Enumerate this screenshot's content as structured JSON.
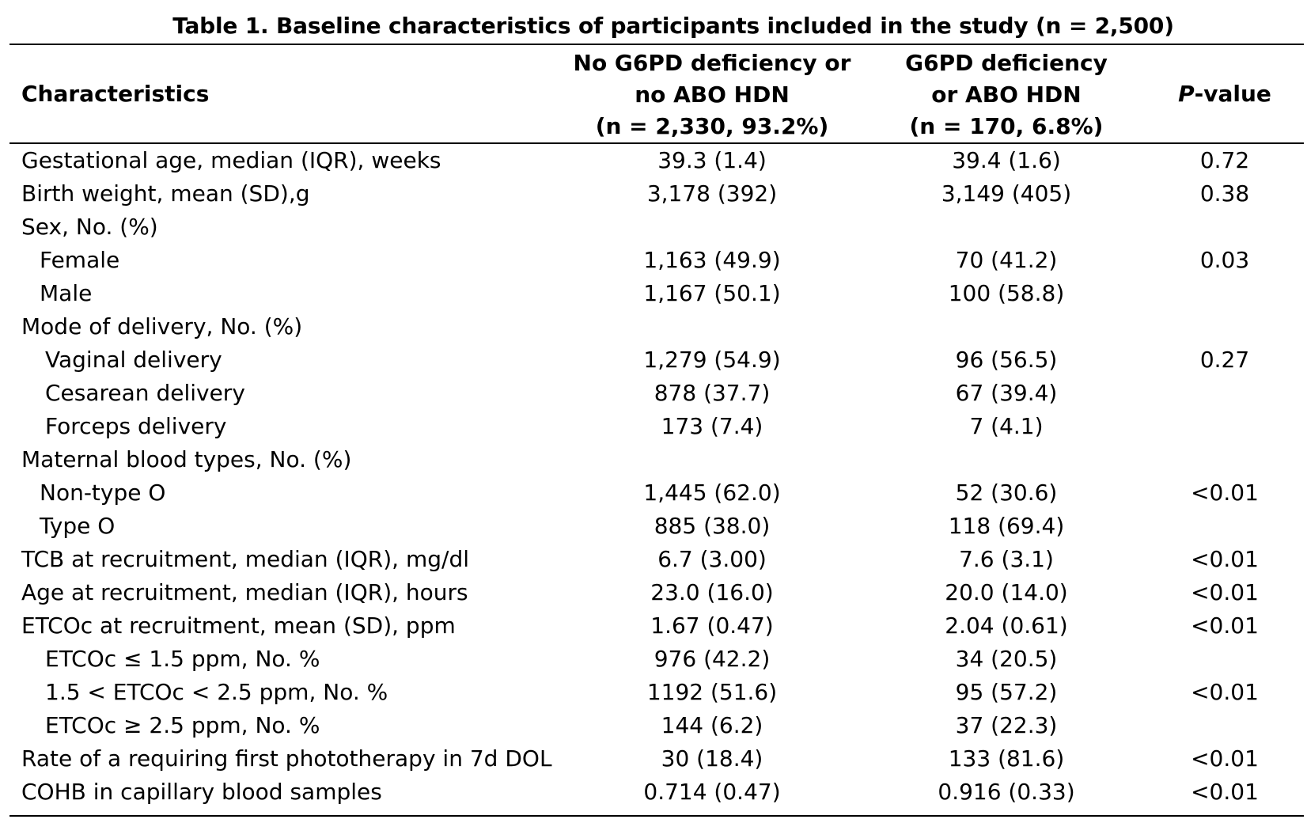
{
  "table": {
    "title": "Table 1. Baseline characteristics of participants included in the study (n = 2,500)",
    "header": {
      "characteristics": "Characteristics",
      "col1_line1": "No G6PD deficiency or",
      "col1_line2": "no ABO HDN",
      "col1_line3": "(n = 2,330, 93.2%)",
      "col2_line1": "G6PD deficiency",
      "col2_line2": "or ABO HDN",
      "col2_line3": "(n = 170, 6.8%)",
      "pvalue_italic": "P",
      "pvalue_rest": "-value"
    },
    "rows": [
      {
        "label": "Gestational age, median (IQR), weeks",
        "v1": "39.3 (1.4)",
        "v2": "39.4 (1.6)",
        "p": "0.72"
      },
      {
        "label": "Birth weight, mean (SD),g",
        "v1": "3,178 (392)",
        "v2": "3,149 (405)",
        "p": "0.38"
      },
      {
        "label": "Sex, No. (%)",
        "v1": "",
        "v2": "",
        "p": ""
      },
      {
        "label": "Female",
        "v1": "1,163 (49.9)",
        "v2": "70 (41.2)",
        "p": "0.03"
      },
      {
        "label": "Male",
        "v1": "1,167 (50.1)",
        "v2": "100 (58.8)",
        "p": ""
      },
      {
        "label": "Mode of delivery, No. (%)",
        "v1": "",
        "v2": "",
        "p": ""
      },
      {
        "label": "Vaginal delivery",
        "v1": "1,279 (54.9)",
        "v2": "96 (56.5)",
        "p": "0.27"
      },
      {
        "label": "Cesarean delivery",
        "v1": "878 (37.7)",
        "v2": "67 (39.4)",
        "p": ""
      },
      {
        "label": "Forceps delivery",
        "v1": "173 (7.4)",
        "v2": "7 (4.1)",
        "p": ""
      },
      {
        "label": "Maternal blood types, No. (%)",
        "v1": "",
        "v2": "",
        "p": ""
      },
      {
        "label": "Non-type O",
        "v1": "1,445 (62.0)",
        "v2": "52 (30.6)",
        "p": "<0.01"
      },
      {
        "label": "Type O",
        "v1": "885 (38.0)",
        "v2": "118 (69.4)",
        "p": ""
      },
      {
        "label": "TCB at recruitment, median (IQR), mg/dl",
        "v1": "6.7 (3.00)",
        "v2": "7.6 (3.1)",
        "p": "<0.01"
      },
      {
        "label": "Age at recruitment, median (IQR), hours",
        "v1": "23.0 (16.0)",
        "v2": "20.0 (14.0)",
        "p": "<0.01"
      },
      {
        "label": "ETCOc at recruitment, mean (SD), ppm",
        "v1": "1.67 (0.47)",
        "v2": "2.04 (0.61)",
        "p": "<0.01"
      },
      {
        "label": "ETCOc ≤ 1.5 ppm, No. %",
        "v1": "976 (42.2)",
        "v2": "34 (20.5)",
        "p": ""
      },
      {
        "label": "1.5 < ETCOc < 2.5 ppm, No. %",
        "v1": "1192 (51.6)",
        "v2": "95 (57.2)",
        "p": "<0.01"
      },
      {
        "label": "ETCOc ≥ 2.5 ppm, No. %",
        "v1": "144 (6.2)",
        "v2": "37 (22.3)",
        "p": ""
      },
      {
        "label": "Rate of a requiring first phototherapy in 7d DOL",
        "v1": "30 (18.4)",
        "v2": "133 (81.6)",
        "p": "<0.01"
      },
      {
        "label": "COHB in capillary blood samples",
        "v1": "0.714 (0.47)",
        "v2": "0.916 (0.33)",
        "p": "<0.01"
      }
    ]
  }
}
